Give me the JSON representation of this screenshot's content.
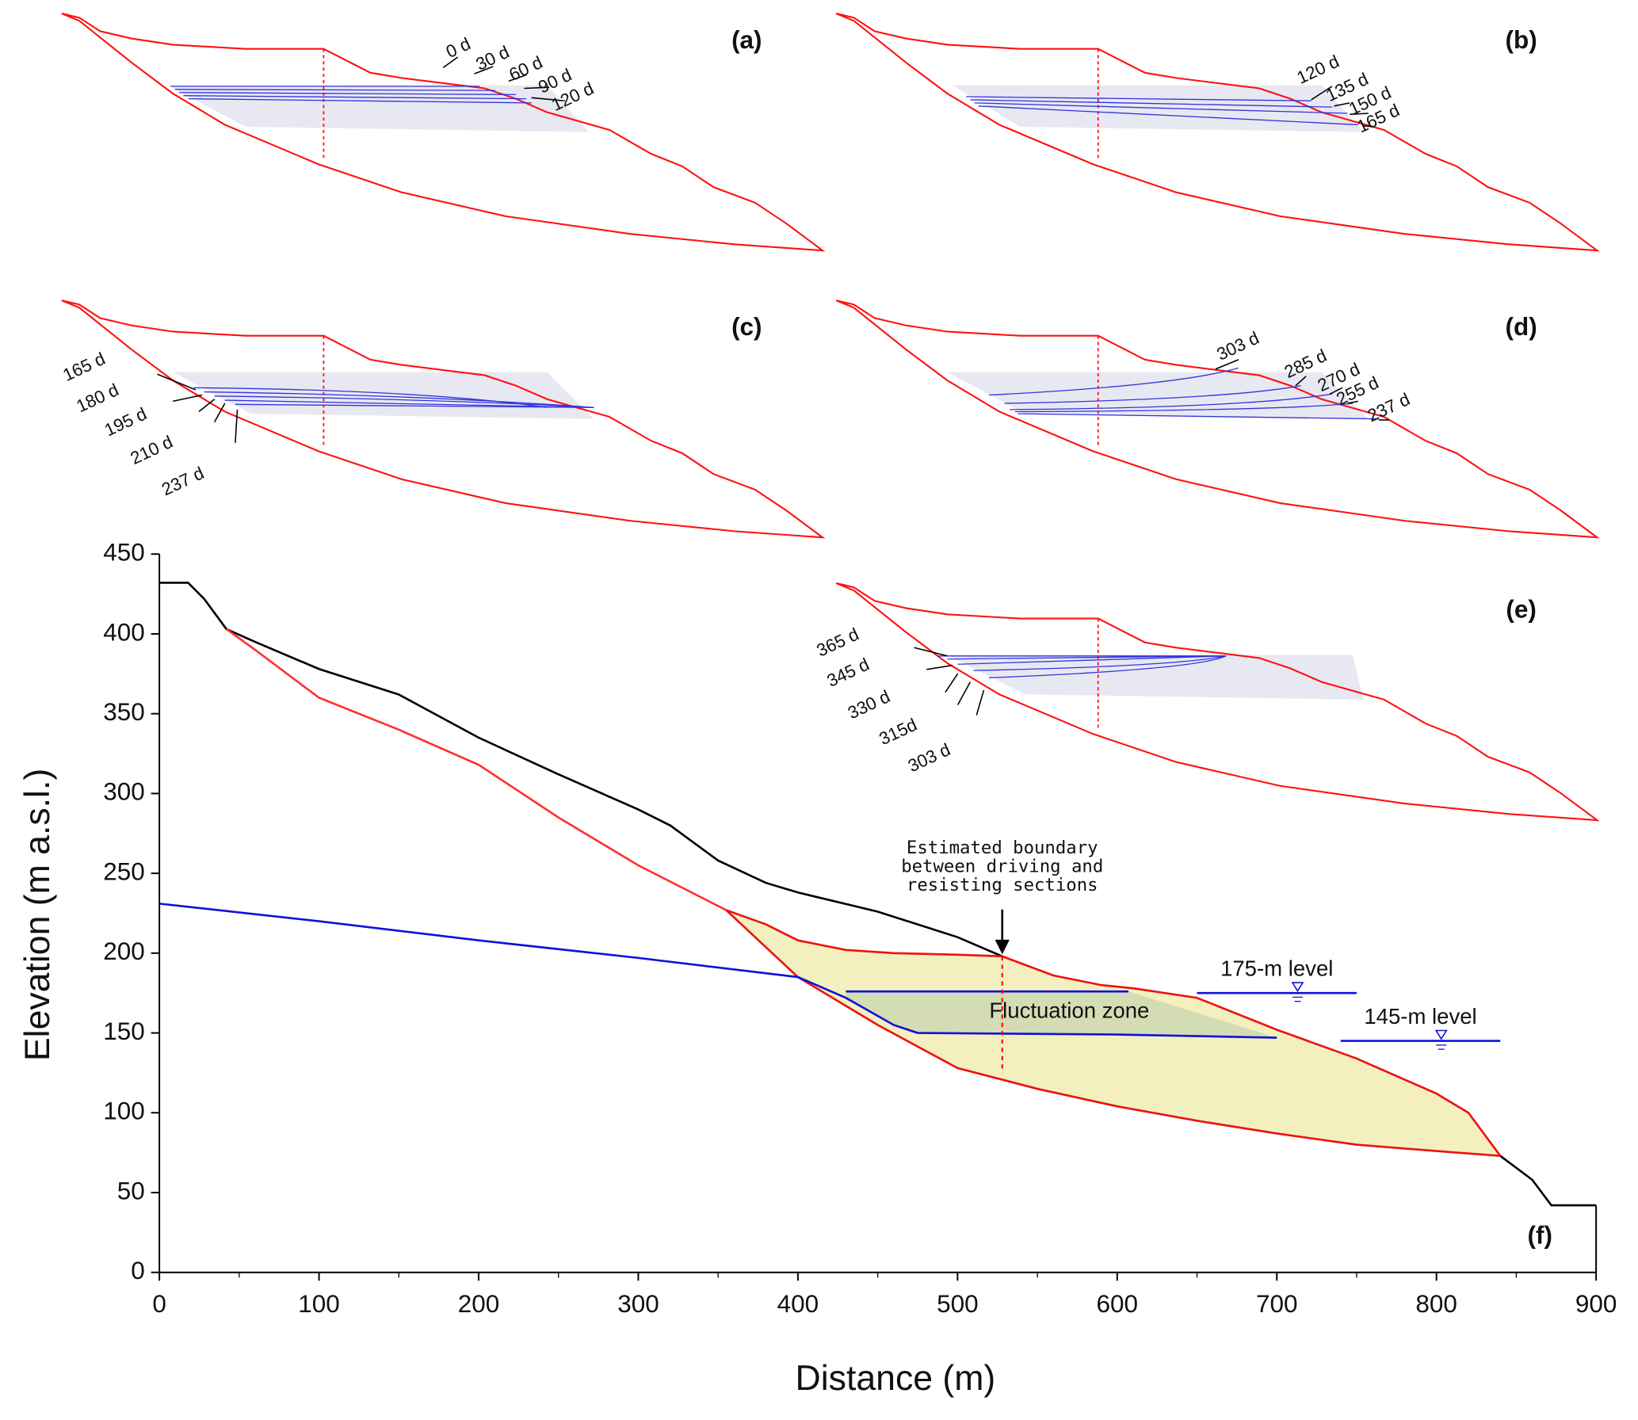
{
  "chart_data": {
    "type": "line",
    "x_label": "Distance (m)",
    "y_label": "Elevation (m a.s.l.)",
    "panel_label": "(f)",
    "xlim": [
      0,
      900
    ],
    "ylim": [
      0,
      450
    ],
    "xticks": [
      0,
      100,
      200,
      300,
      400,
      500,
      600,
      700,
      800,
      900
    ],
    "yticks": [
      0,
      50,
      100,
      150,
      200,
      250,
      300,
      350,
      400,
      450
    ],
    "series": [
      {
        "color": "#000000",
        "x": [
          0,
          18,
          28,
          42,
          60,
          100,
          150,
          200,
          250,
          300,
          320,
          350,
          380,
          400,
          450,
          500,
          528,
          700,
          840,
          860,
          872,
          900
        ],
        "values": [
          432,
          432,
          422,
          403,
          395,
          378,
          362,
          335,
          312,
          290,
          280,
          258,
          244,
          238,
          226,
          210,
          198,
          null,
          73,
          58,
          42,
          42
        ]
      },
      {
        "color": "#ff3030",
        "x": [
          42,
          60,
          100,
          150,
          200,
          250,
          300,
          355
        ],
        "values": [
          403,
          390,
          360,
          340,
          318,
          285,
          255,
          227
        ]
      },
      {
        "color": "#ee1111",
        "x": [
          355,
          380,
          400,
          430,
          460,
          500,
          528,
          560,
          590,
          610,
          650,
          700,
          750,
          800,
          820,
          840
        ],
        "values": [
          227,
          218,
          208,
          202,
          200,
          199,
          198,
          186,
          180,
          178,
          172,
          152,
          134,
          112,
          100,
          73
        ]
      },
      {
        "color": "#ee1111",
        "x": [
          355,
          400,
          450,
          500,
          550,
          600,
          650,
          700,
          750,
          800,
          840
        ],
        "values": [
          227,
          185,
          155,
          128,
          115,
          104,
          95,
          87,
          80,
          76,
          73
        ]
      },
      {
        "color": "#1010dd",
        "x": [
          0,
          100,
          200,
          300,
          400,
          430,
          460,
          475,
          600,
          700
        ],
        "values": [
          231,
          220,
          208,
          197,
          185,
          172,
          155,
          150,
          149,
          147
        ]
      },
      {
        "color": "#1010dd",
        "x": [
          430,
          607
        ],
        "values": [
          176,
          176
        ]
      },
      {
        "color": "#ff0000",
        "dash": true,
        "x": [
          528,
          528
        ],
        "values": [
          198,
          125
        ]
      }
    ],
    "boundary_note": [
      "Estimated boundary",
      "between driving and",
      "resisting sections"
    ],
    "zone_label": "Fluctuation zone",
    "water_levels": [
      {
        "label": "175-m level",
        "value": 175,
        "x": [
          650,
          750
        ]
      },
      {
        "label": "145-m level",
        "value": 145,
        "x": [
          740,
          840
        ]
      }
    ]
  },
  "panels": [
    {
      "label": "(a)",
      "times": [
        "0 d",
        "30 d",
        "60 d",
        "90 d",
        "120 d"
      ]
    },
    {
      "label": "(b)",
      "times": [
        "120 d",
        "135 d",
        "150 d",
        "165 d"
      ]
    },
    {
      "label": "(c)",
      "times": [
        "165 d",
        "180 d",
        "195 d",
        "210 d",
        "237 d"
      ]
    },
    {
      "label": "(d)",
      "times": [
        "303 d",
        "285 d",
        "270 d",
        "255 d",
        "237 d"
      ]
    },
    {
      "label": "(e)",
      "times": [
        "365 d",
        "345 d",
        "330 d",
        "315d",
        "303 d"
      ]
    }
  ]
}
